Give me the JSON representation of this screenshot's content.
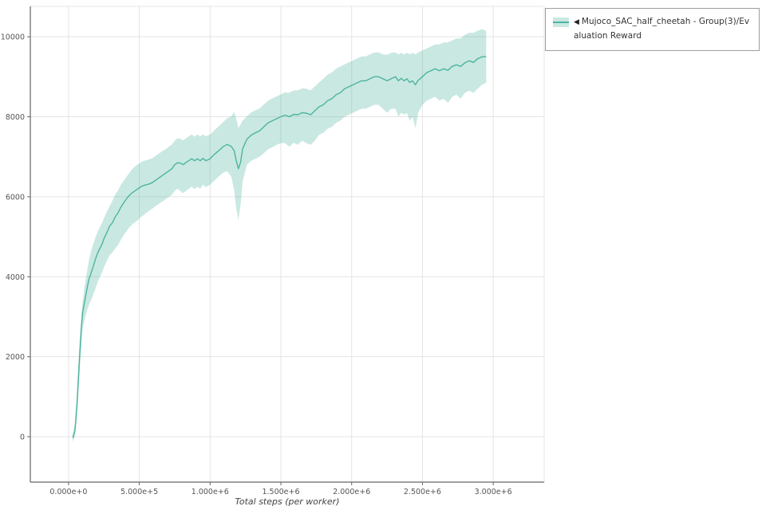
{
  "legend": {
    "collapse_icon": "◀",
    "label": "Mujoco_SAC_half_cheetah - Group(3)/Evaluation Reward"
  },
  "colors": {
    "line": "#4cb49e",
    "band": "#4cb49e",
    "grid": "#e4e4e4",
    "axis": "#666666",
    "tick_label": "#555555",
    "background": "#ffffff",
    "legend_border": "#9e9e9e"
  },
  "chart_data": {
    "type": "line",
    "title": "",
    "xlabel": "Total steps (per worker)",
    "ylabel": "",
    "grid": true,
    "legend_position": "top-right-outside",
    "xlim": [
      -270000,
      3360000
    ],
    "ylim": [
      -1135,
      10760
    ],
    "x_ticks": {
      "values": [
        0,
        500000,
        1000000,
        1500000,
        2000000,
        2500000,
        3000000
      ],
      "labels": [
        "0.000e+0",
        "5.000e+5",
        "1.000e+6",
        "1.500e+6",
        "2.000e+6",
        "2.500e+6",
        "3.000e+6"
      ]
    },
    "y_ticks": {
      "values": [
        0,
        2000,
        4000,
        6000,
        8000,
        10000
      ],
      "labels": [
        "0",
        "2000",
        "4000",
        "6000",
        "8000",
        "10000"
      ]
    },
    "series": [
      {
        "name": "Mujoco_SAC_half_cheetah - Group(3)/Evaluation Reward",
        "color": "#4cb49e",
        "band_fill": "#4cb49e",
        "band_opacity": 0.3,
        "point_format": "[x, band_low, mean, band_high]",
        "points": [
          [
            30000,
            -120,
            -30,
            60
          ],
          [
            45000,
            0,
            150,
            350
          ],
          [
            60000,
            500,
            800,
            1150
          ],
          [
            75000,
            1400,
            1800,
            2200
          ],
          [
            90000,
            2300,
            2700,
            3050
          ],
          [
            100000,
            2700,
            3100,
            3400
          ],
          [
            115000,
            2950,
            3400,
            3800
          ],
          [
            130000,
            3150,
            3700,
            4120
          ],
          [
            145000,
            3300,
            3950,
            4420
          ],
          [
            160000,
            3420,
            4100,
            4650
          ],
          [
            175000,
            3560,
            4260,
            4820
          ],
          [
            190000,
            3700,
            4440,
            4980
          ],
          [
            205000,
            3860,
            4590,
            5120
          ],
          [
            220000,
            3980,
            4700,
            5230
          ],
          [
            235000,
            4090,
            4800,
            5330
          ],
          [
            250000,
            4240,
            4950,
            5470
          ],
          [
            270000,
            4390,
            5100,
            5620
          ],
          [
            290000,
            4540,
            5260,
            5760
          ],
          [
            310000,
            4610,
            5350,
            5900
          ],
          [
            330000,
            4710,
            5500,
            6060
          ],
          [
            350000,
            4790,
            5600,
            6160
          ],
          [
            370000,
            4930,
            5740,
            6300
          ],
          [
            390000,
            5040,
            5850,
            6400
          ],
          [
            410000,
            5140,
            5950,
            6500
          ],
          [
            430000,
            5240,
            6040,
            6600
          ],
          [
            450000,
            5310,
            6100,
            6690
          ],
          [
            470000,
            5360,
            6150,
            6760
          ],
          [
            490000,
            5420,
            6200,
            6810
          ],
          [
            510000,
            5490,
            6250,
            6860
          ],
          [
            530000,
            5540,
            6280,
            6900
          ],
          [
            550000,
            5600,
            6300,
            6910
          ],
          [
            570000,
            5650,
            6320,
            6940
          ],
          [
            590000,
            5700,
            6350,
            6960
          ],
          [
            610000,
            5750,
            6400,
            7010
          ],
          [
            630000,
            5800,
            6450,
            7060
          ],
          [
            650000,
            5850,
            6500,
            7110
          ],
          [
            670000,
            5900,
            6550,
            7160
          ],
          [
            690000,
            5950,
            6600,
            7200
          ],
          [
            710000,
            6000,
            6650,
            7260
          ],
          [
            730000,
            6050,
            6700,
            7310
          ],
          [
            750000,
            6150,
            6800,
            7400
          ],
          [
            770000,
            6200,
            6850,
            7460
          ],
          [
            790000,
            6140,
            6840,
            7450
          ],
          [
            810000,
            6090,
            6800,
            7410
          ],
          [
            830000,
            6150,
            6860,
            7460
          ],
          [
            850000,
            6200,
            6900,
            7510
          ],
          [
            870000,
            6250,
            6950,
            7560
          ],
          [
            890000,
            6190,
            6900,
            7500
          ],
          [
            910000,
            6250,
            6950,
            7560
          ],
          [
            930000,
            6200,
            6900,
            7510
          ],
          [
            950000,
            6300,
            6960,
            7560
          ],
          [
            970000,
            6240,
            6900,
            7510
          ],
          [
            1000000,
            6300,
            6950,
            7560
          ],
          [
            1030000,
            6400,
            7060,
            7660
          ],
          [
            1060000,
            6500,
            7150,
            7760
          ],
          [
            1090000,
            6600,
            7250,
            7860
          ],
          [
            1120000,
            6640,
            7310,
            7960
          ],
          [
            1150000,
            6500,
            7260,
            8010
          ],
          [
            1170000,
            6150,
            7150,
            8120
          ],
          [
            1185000,
            5700,
            6900,
            7950
          ],
          [
            1200000,
            5420,
            6700,
            7720
          ],
          [
            1215000,
            5800,
            6860,
            7810
          ],
          [
            1230000,
            6380,
            7200,
            7900
          ],
          [
            1260000,
            6800,
            7440,
            8010
          ],
          [
            1290000,
            6900,
            7540,
            8110
          ],
          [
            1320000,
            6950,
            7600,
            8160
          ],
          [
            1350000,
            7000,
            7650,
            8210
          ],
          [
            1380000,
            7090,
            7750,
            8310
          ],
          [
            1410000,
            7190,
            7850,
            8400
          ],
          [
            1440000,
            7240,
            7900,
            8460
          ],
          [
            1470000,
            7300,
            7950,
            8510
          ],
          [
            1500000,
            7340,
            8000,
            8560
          ],
          [
            1530000,
            7340,
            8040,
            8610
          ],
          [
            1560000,
            7250,
            8000,
            8600
          ],
          [
            1590000,
            7350,
            8060,
            8660
          ],
          [
            1620000,
            7300,
            8050,
            8660
          ],
          [
            1650000,
            7400,
            8100,
            8710
          ],
          [
            1680000,
            7340,
            8090,
            8700
          ],
          [
            1710000,
            7300,
            8050,
            8660
          ],
          [
            1740000,
            7400,
            8150,
            8760
          ],
          [
            1770000,
            7550,
            8250,
            8860
          ],
          [
            1800000,
            7600,
            8300,
            8950
          ],
          [
            1830000,
            7700,
            8400,
            9050
          ],
          [
            1860000,
            7750,
            8450,
            9110
          ],
          [
            1890000,
            7850,
            8550,
            9200
          ],
          [
            1920000,
            7900,
            8600,
            9260
          ],
          [
            1950000,
            8000,
            8700,
            9310
          ],
          [
            1980000,
            8050,
            8750,
            9360
          ],
          [
            2010000,
            8100,
            8800,
            9410
          ],
          [
            2040000,
            8150,
            8850,
            9460
          ],
          [
            2070000,
            8200,
            8900,
            9510
          ],
          [
            2100000,
            8200,
            8900,
            9510
          ],
          [
            2130000,
            8250,
            8950,
            9560
          ],
          [
            2160000,
            8300,
            9000,
            9610
          ],
          [
            2190000,
            8300,
            9000,
            9610
          ],
          [
            2220000,
            8200,
            8950,
            9560
          ],
          [
            2250000,
            8100,
            8900,
            9550
          ],
          [
            2280000,
            8200,
            8950,
            9600
          ],
          [
            2310000,
            8200,
            9000,
            9610
          ],
          [
            2330000,
            8000,
            8900,
            9560
          ],
          [
            2350000,
            8100,
            8960,
            9600
          ],
          [
            2370000,
            8050,
            8900,
            9560
          ],
          [
            2390000,
            8100,
            8950,
            9600
          ],
          [
            2410000,
            7900,
            8860,
            9560
          ],
          [
            2430000,
            8000,
            8900,
            9600
          ],
          [
            2450000,
            7720,
            8800,
            9560
          ],
          [
            2470000,
            8100,
            8910,
            9610
          ],
          [
            2500000,
            8300,
            9000,
            9660
          ],
          [
            2530000,
            8400,
            9100,
            9710
          ],
          [
            2560000,
            8450,
            9150,
            9760
          ],
          [
            2590000,
            8500,
            9200,
            9810
          ],
          [
            2620000,
            8400,
            9150,
            9810
          ],
          [
            2650000,
            8450,
            9200,
            9860
          ],
          [
            2680000,
            8350,
            9160,
            9860
          ],
          [
            2710000,
            8500,
            9260,
            9910
          ],
          [
            2740000,
            8550,
            9300,
            9960
          ],
          [
            2770000,
            8450,
            9260,
            9960
          ],
          [
            2800000,
            8600,
            9350,
            10050
          ],
          [
            2830000,
            8650,
            9400,
            10100
          ],
          [
            2860000,
            8600,
            9360,
            10100
          ],
          [
            2890000,
            8700,
            9450,
            10150
          ],
          [
            2920000,
            8800,
            9500,
            10190
          ],
          [
            2950000,
            8850,
            9500,
            10150
          ]
        ]
      }
    ]
  }
}
